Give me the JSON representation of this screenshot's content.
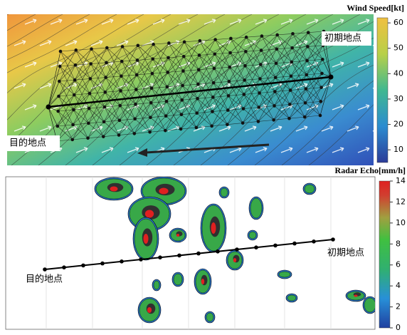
{
  "wind_panel": {
    "colorbar": {
      "title": "Wind Speed[kt]",
      "lim": [
        5,
        62
      ],
      "ticks": [
        10,
        20,
        30,
        40,
        50,
        60
      ]
    },
    "labels": {
      "start": "初期地点",
      "goal": "目的地点"
    }
  },
  "radar_panel": {
    "colorbar": {
      "title": "Radar Echo[mm/h]",
      "lim": [
        0,
        14
      ],
      "ticks": [
        0,
        2,
        4,
        6,
        8,
        10,
        12,
        14
      ]
    },
    "labels": {
      "start": "初期地点",
      "goal": "目的地点"
    }
  }
}
